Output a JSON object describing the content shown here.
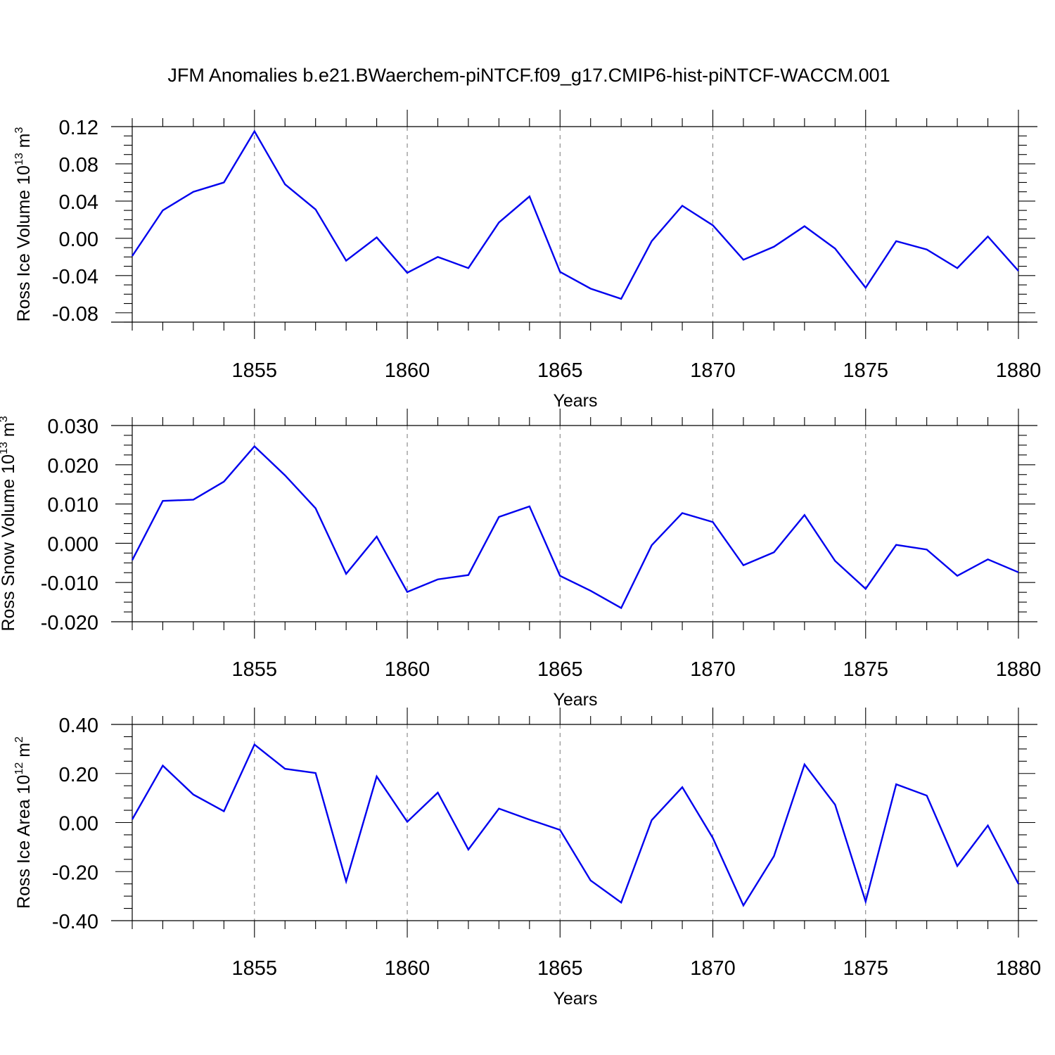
{
  "title": "JFM Anomalies b.e21.BWaerchem-piNTCF.f09_g17.CMIP6-hist-piNTCF-WACCM.001",
  "chart_data": [
    {
      "type": "line",
      "ylabel": "Ross Ice Volume 10",
      "ylabel_exp": "13",
      "ylabel_unit": " m",
      "ylabel_unit_exp": "3",
      "xlabel": "Years",
      "xlim": [
        1851,
        1880
      ],
      "ylim": [
        -0.09,
        0.12
      ],
      "x_ticks": [
        "1855",
        "1860",
        "1865",
        "1870",
        "1875",
        "1880"
      ],
      "y_ticks": [
        "0.12",
        "0.08",
        "0.04",
        "0.00",
        "-0.04",
        "-0.08"
      ],
      "x": [
        1851,
        1852,
        1853,
        1854,
        1855,
        1856,
        1857,
        1858,
        1859,
        1860,
        1861,
        1862,
        1863,
        1864,
        1865,
        1866,
        1867,
        1868,
        1869,
        1870,
        1871,
        1872,
        1873,
        1874,
        1875,
        1876,
        1877,
        1878,
        1879,
        1880
      ],
      "series": [
        {
          "color": "#0000ee",
          "values": [
            -0.019,
            0.03,
            0.05,
            0.06,
            0.115,
            0.058,
            0.031,
            -0.024,
            0.001,
            -0.037,
            -0.02,
            -0.032,
            0.017,
            0.045,
            -0.036,
            -0.054,
            -0.065,
            -0.003,
            0.035,
            0.014,
            -0.023,
            -0.009,
            0.013,
            -0.011,
            -0.053,
            -0.003,
            -0.012,
            -0.032,
            0.002,
            -0.035
          ]
        }
      ]
    },
    {
      "type": "line",
      "ylabel": "Ross Snow Volume 10",
      "ylabel_exp": "13",
      "ylabel_unit": " m",
      "ylabel_unit_exp": "3",
      "xlabel": "Years",
      "xlim": [
        1851,
        1880
      ],
      "ylim": [
        -0.02,
        0.03
      ],
      "x_ticks": [
        "1855",
        "1860",
        "1865",
        "1870",
        "1875",
        "1880"
      ],
      "y_ticks": [
        "0.030",
        "0.020",
        "0.010",
        "0.000",
        "-0.010",
        "-0.020"
      ],
      "x": [
        1851,
        1852,
        1853,
        1854,
        1855,
        1856,
        1857,
        1858,
        1859,
        1860,
        1861,
        1862,
        1863,
        1864,
        1865,
        1866,
        1867,
        1868,
        1869,
        1870,
        1871,
        1872,
        1873,
        1874,
        1875,
        1876,
        1877,
        1878,
        1879,
        1880
      ],
      "series": [
        {
          "color": "#0000ee",
          "values": [
            -0.0043,
            0.0108,
            0.0111,
            0.0157,
            0.0247,
            0.0173,
            0.0089,
            -0.0078,
            0.0017,
            -0.0124,
            -0.0092,
            -0.0081,
            0.0067,
            0.0094,
            -0.0083,
            -0.0121,
            -0.0165,
            -0.0005,
            0.0077,
            0.0054,
            -0.0056,
            -0.0023,
            0.0072,
            -0.0045,
            -0.0116,
            -0.0004,
            -0.0016,
            -0.0083,
            -0.0041,
            -0.0074
          ]
        }
      ]
    },
    {
      "type": "line",
      "ylabel": "Ross Ice Area 10",
      "ylabel_exp": "12",
      "ylabel_unit": " m",
      "ylabel_unit_exp": "2",
      "xlabel": "Years",
      "xlim": [
        1851,
        1880
      ],
      "ylim": [
        -0.4,
        0.4
      ],
      "x_ticks": [
        "1855",
        "1860",
        "1865",
        "1870",
        "1875",
        "1880"
      ],
      "y_ticks": [
        "0.40",
        "0.20",
        "0.00",
        "-0.20",
        "-0.40"
      ],
      "x": [
        1851,
        1852,
        1853,
        1854,
        1855,
        1856,
        1857,
        1858,
        1859,
        1860,
        1861,
        1862,
        1863,
        1864,
        1865,
        1866,
        1867,
        1868,
        1869,
        1870,
        1871,
        1872,
        1873,
        1874,
        1875,
        1876,
        1877,
        1878,
        1879,
        1880
      ],
      "series": [
        {
          "color": "#0000ee",
          "values": [
            0.013,
            0.232,
            0.114,
            0.046,
            0.318,
            0.219,
            0.202,
            -0.24,
            0.188,
            0.003,
            0.122,
            -0.11,
            0.057,
            0.012,
            -0.03,
            -0.236,
            -0.326,
            0.01,
            0.144,
            -0.063,
            -0.338,
            -0.137,
            0.237,
            0.073,
            -0.322,
            0.156,
            0.11,
            -0.177,
            -0.012,
            -0.25
          ]
        }
      ]
    }
  ]
}
